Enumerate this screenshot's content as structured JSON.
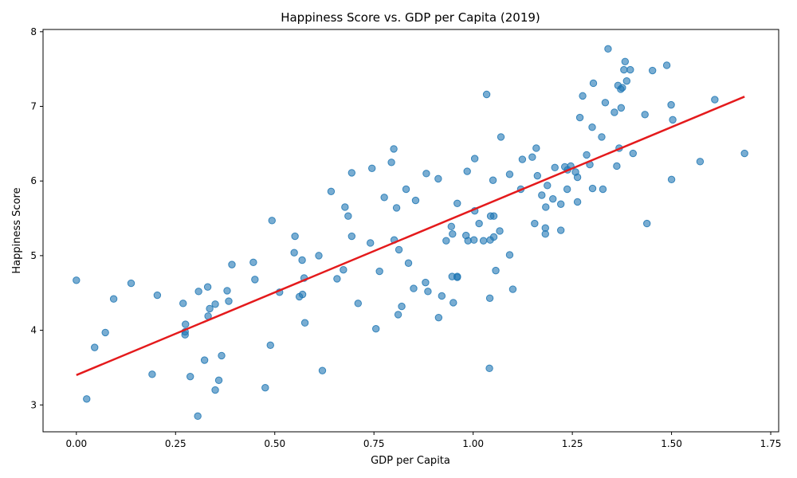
{
  "chart_data": {
    "type": "scatter",
    "title": "Happiness Score vs. GDP per Capita (2019)",
    "xlabel": "GDP per Capita",
    "ylabel": "Happiness Score",
    "xlim": [
      -0.084,
      1.77
    ],
    "ylim": [
      2.64,
      8.03
    ],
    "xticks": [
      0.0,
      0.25,
      0.5,
      0.75,
      1.0,
      1.25,
      1.5,
      1.75
    ],
    "xtick_labels": [
      "0.00",
      "0.25",
      "0.50",
      "0.75",
      "1.00",
      "1.25",
      "1.50",
      "1.75"
    ],
    "yticks": [
      3,
      4,
      5,
      6,
      7,
      8
    ],
    "ytick_labels": [
      "3",
      "4",
      "5",
      "6",
      "7",
      "8"
    ],
    "grid": false,
    "colors": {
      "points": "#1f77b4",
      "fit_line": "#e41a1c"
    },
    "trend_line": {
      "x": [
        0.0,
        1.684
      ],
      "y": [
        3.4,
        7.13
      ]
    },
    "points": [
      {
        "x": 1.34,
        "y": 7.77
      },
      {
        "x": 1.383,
        "y": 7.6
      },
      {
        "x": 1.488,
        "y": 7.55
      },
      {
        "x": 1.38,
        "y": 7.49
      },
      {
        "x": 1.396,
        "y": 7.49
      },
      {
        "x": 1.452,
        "y": 7.48
      },
      {
        "x": 1.387,
        "y": 7.34
      },
      {
        "x": 1.303,
        "y": 7.31
      },
      {
        "x": 1.365,
        "y": 7.28
      },
      {
        "x": 1.376,
        "y": 7.25
      },
      {
        "x": 1.372,
        "y": 7.23
      },
      {
        "x": 1.034,
        "y": 7.16
      },
      {
        "x": 1.276,
        "y": 7.14
      },
      {
        "x": 1.609,
        "y": 7.09
      },
      {
        "x": 1.333,
        "y": 7.05
      },
      {
        "x": 1.499,
        "y": 7.02
      },
      {
        "x": 1.373,
        "y": 6.98
      },
      {
        "x": 1.356,
        "y": 6.92
      },
      {
        "x": 1.433,
        "y": 6.89
      },
      {
        "x": 1.269,
        "y": 6.85
      },
      {
        "x": 1.503,
        "y": 6.82
      },
      {
        "x": 1.3,
        "y": 6.72
      },
      {
        "x": 1.07,
        "y": 6.59
      },
      {
        "x": 1.324,
        "y": 6.59
      },
      {
        "x": 1.368,
        "y": 6.44
      },
      {
        "x": 1.159,
        "y": 6.44
      },
      {
        "x": 0.8,
        "y": 6.43
      },
      {
        "x": 1.403,
        "y": 6.37
      },
      {
        "x": 1.684,
        "y": 6.37
      },
      {
        "x": 1.286,
        "y": 6.35
      },
      {
        "x": 1.149,
        "y": 6.32
      },
      {
        "x": 1.004,
        "y": 6.3
      },
      {
        "x": 1.124,
        "y": 6.29
      },
      {
        "x": 1.572,
        "y": 6.26
      },
      {
        "x": 0.794,
        "y": 6.25
      },
      {
        "x": 1.294,
        "y": 6.22
      },
      {
        "x": 1.362,
        "y": 6.2
      },
      {
        "x": 1.246,
        "y": 6.2
      },
      {
        "x": 1.231,
        "y": 6.19
      },
      {
        "x": 1.206,
        "y": 6.18
      },
      {
        "x": 0.745,
        "y": 6.17
      },
      {
        "x": 1.238,
        "y": 6.15
      },
      {
        "x": 0.985,
        "y": 6.13
      },
      {
        "x": 1.258,
        "y": 6.12
      },
      {
        "x": 0.694,
        "y": 6.11
      },
      {
        "x": 0.882,
        "y": 6.1
      },
      {
        "x": 1.092,
        "y": 6.09
      },
      {
        "x": 1.162,
        "y": 6.07
      },
      {
        "x": 1.263,
        "y": 6.05
      },
      {
        "x": 0.912,
        "y": 6.03
      },
      {
        "x": 1.5,
        "y": 6.02
      },
      {
        "x": 1.05,
        "y": 6.01
      },
      {
        "x": 1.187,
        "y": 5.94
      },
      {
        "x": 1.301,
        "y": 5.9
      },
      {
        "x": 1.237,
        "y": 5.89
      },
      {
        "x": 0.831,
        "y": 5.89
      },
      {
        "x": 1.12,
        "y": 5.89
      },
      {
        "x": 1.327,
        "y": 5.89
      },
      {
        "x": 0.642,
        "y": 5.86
      },
      {
        "x": 1.173,
        "y": 5.81
      },
      {
        "x": 0.776,
        "y": 5.78
      },
      {
        "x": 1.201,
        "y": 5.76
      },
      {
        "x": 0.855,
        "y": 5.74
      },
      {
        "x": 1.263,
        "y": 5.72
      },
      {
        "x": 0.96,
        "y": 5.7
      },
      {
        "x": 1.221,
        "y": 5.69
      },
      {
        "x": 0.677,
        "y": 5.65
      },
      {
        "x": 1.183,
        "y": 5.65
      },
      {
        "x": 0.807,
        "y": 5.64
      },
      {
        "x": 1.004,
        "y": 5.6
      },
      {
        "x": 0.685,
        "y": 5.53
      },
      {
        "x": 1.052,
        "y": 5.53
      },
      {
        "x": 1.044,
        "y": 5.53
      },
      {
        "x": 0.493,
        "y": 5.47
      },
      {
        "x": 1.155,
        "y": 5.43
      },
      {
        "x": 1.015,
        "y": 5.43
      },
      {
        "x": 1.438,
        "y": 5.43
      },
      {
        "x": 0.945,
        "y": 5.39
      },
      {
        "x": 1.182,
        "y": 5.37
      },
      {
        "x": 1.221,
        "y": 5.34
      },
      {
        "x": 1.067,
        "y": 5.33
      },
      {
        "x": 1.182,
        "y": 5.29
      },
      {
        "x": 0.948,
        "y": 5.29
      },
      {
        "x": 0.982,
        "y": 5.27
      },
      {
        "x": 0.694,
        "y": 5.26
      },
      {
        "x": 0.551,
        "y": 5.26
      },
      {
        "x": 1.052,
        "y": 5.25
      },
      {
        "x": 1.002,
        "y": 5.21
      },
      {
        "x": 0.801,
        "y": 5.21
      },
      {
        "x": 1.043,
        "y": 5.21
      },
      {
        "x": 1.026,
        "y": 5.2
      },
      {
        "x": 0.987,
        "y": 5.2
      },
      {
        "x": 0.932,
        "y": 5.2
      },
      {
        "x": 0.741,
        "y": 5.17
      },
      {
        "x": 0.813,
        "y": 5.08
      },
      {
        "x": 0.549,
        "y": 5.04
      },
      {
        "x": 1.092,
        "y": 5.01
      },
      {
        "x": 0.611,
        "y": 5.0
      },
      {
        "x": 0.569,
        "y": 4.94
      },
      {
        "x": 0.446,
        "y": 4.91
      },
      {
        "x": 0.837,
        "y": 4.9
      },
      {
        "x": 0.392,
        "y": 4.88
      },
      {
        "x": 0.673,
        "y": 4.81
      },
      {
        "x": 1.057,
        "y": 4.8
      },
      {
        "x": 0.764,
        "y": 4.79
      },
      {
        "x": 0.96,
        "y": 4.72
      },
      {
        "x": 0.947,
        "y": 4.72
      },
      {
        "x": 0.96,
        "y": 4.71
      },
      {
        "x": 0.574,
        "y": 4.7
      },
      {
        "x": 0.657,
        "y": 4.69
      },
      {
        "x": 0.45,
        "y": 4.68
      },
      {
        "x": 0.0,
        "y": 4.67
      },
      {
        "x": 0.88,
        "y": 4.64
      },
      {
        "x": 0.138,
        "y": 4.63
      },
      {
        "x": 0.331,
        "y": 4.58
      },
      {
        "x": 0.85,
        "y": 4.56
      },
      {
        "x": 1.1,
        "y": 4.55
      },
      {
        "x": 0.38,
        "y": 4.53
      },
      {
        "x": 0.308,
        "y": 4.52
      },
      {
        "x": 0.886,
        "y": 4.52
      },
      {
        "x": 0.512,
        "y": 4.51
      },
      {
        "x": 0.57,
        "y": 4.48
      },
      {
        "x": 0.204,
        "y": 4.47
      },
      {
        "x": 0.921,
        "y": 4.46
      },
      {
        "x": 0.562,
        "y": 4.45
      },
      {
        "x": 1.042,
        "y": 4.43
      },
      {
        "x": 0.094,
        "y": 4.42
      },
      {
        "x": 0.384,
        "y": 4.39
      },
      {
        "x": 0.95,
        "y": 4.37
      },
      {
        "x": 0.269,
        "y": 4.36
      },
      {
        "x": 0.71,
        "y": 4.36
      },
      {
        "x": 0.35,
        "y": 4.35
      },
      {
        "x": 0.82,
        "y": 4.32
      },
      {
        "x": 0.336,
        "y": 4.29
      },
      {
        "x": 0.811,
        "y": 4.21
      },
      {
        "x": 0.332,
        "y": 4.19
      },
      {
        "x": 0.913,
        "y": 4.17
      },
      {
        "x": 0.576,
        "y": 4.1
      },
      {
        "x": 0.275,
        "y": 4.08
      },
      {
        "x": 0.755,
        "y": 4.02
      },
      {
        "x": 0.274,
        "y": 3.98
      },
      {
        "x": 0.073,
        "y": 3.97
      },
      {
        "x": 0.274,
        "y": 3.94
      },
      {
        "x": 0.489,
        "y": 3.8
      },
      {
        "x": 0.046,
        "y": 3.77
      },
      {
        "x": 0.366,
        "y": 3.66
      },
      {
        "x": 0.323,
        "y": 3.6
      },
      {
        "x": 0.62,
        "y": 3.46
      },
      {
        "x": 1.041,
        "y": 3.49
      },
      {
        "x": 0.191,
        "y": 3.41
      },
      {
        "x": 0.287,
        "y": 3.38
      },
      {
        "x": 0.359,
        "y": 3.33
      },
      {
        "x": 0.476,
        "y": 3.23
      },
      {
        "x": 0.35,
        "y": 3.2
      },
      {
        "x": 0.026,
        "y": 3.08
      },
      {
        "x": 0.306,
        "y": 2.85
      }
    ]
  }
}
